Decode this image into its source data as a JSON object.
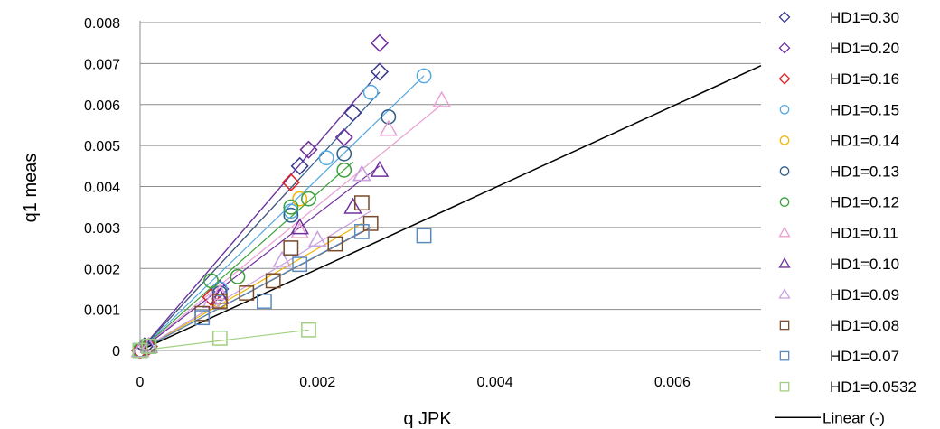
{
  "chart_data": {
    "type": "scatter",
    "title": "",
    "xlabel": "q JPK",
    "ylabel": "q1 meas",
    "xlim": [
      0,
      0.007
    ],
    "ylim": [
      0,
      0.008
    ],
    "xticks": [
      0,
      0.002,
      0.004,
      0.006
    ],
    "xtick_labels": [
      "0",
      "0.002",
      "0.004",
      "0.006"
    ],
    "yticks": [
      0,
      0.001,
      0.002,
      0.003,
      0.004,
      0.005,
      0.006,
      0.007,
      0.008
    ],
    "ytick_labels": [
      "0",
      "0.001",
      "0.002",
      "0.003",
      "0.004",
      "0.005",
      "0.006",
      "0.007",
      "0.008"
    ],
    "grid": "horizontal",
    "legend_position": "right",
    "series": [
      {
        "name": "HD1=0.30",
        "marker": "diamond",
        "color": "#3a3a8c",
        "points": [
          [
            0,
            0
          ],
          [
            5e-05,
            0.0001
          ],
          [
            0.0009,
            0.0015
          ],
          [
            0.0018,
            0.0045
          ],
          [
            0.0024,
            0.0058
          ],
          [
            0.0027,
            0.0068
          ]
        ],
        "fit": [
          [
            0,
            0
          ],
          [
            0.0027,
            0.0068
          ]
        ]
      },
      {
        "name": "HD1=0.20",
        "marker": "diamond",
        "color": "#7030a0",
        "points": [
          [
            0,
            0
          ],
          [
            0.0001,
            0.0001
          ],
          [
            0.0009,
            0.0015
          ],
          [
            0.0019,
            0.0049
          ],
          [
            0.0023,
            0.0052
          ],
          [
            0.0027,
            0.0075
          ]
        ],
        "fit": [
          [
            0,
            0
          ],
          [
            0.0025,
            0.0063
          ]
        ]
      },
      {
        "name": "HD1=0.16",
        "marker": "diamond",
        "color": "#e02020",
        "points": [
          [
            0,
            0
          ],
          [
            0.0001,
            0.0001
          ],
          [
            0.0008,
            0.0013
          ],
          [
            0.0017,
            0.0041
          ]
        ],
        "fit": [
          [
            0,
            0
          ],
          [
            0.0018,
            0.0042
          ]
        ]
      },
      {
        "name": "HD1=0.15",
        "marker": "circle",
        "color": "#55a8e0",
        "points": [
          [
            0,
            0
          ],
          [
            0.0001,
            0.0001
          ],
          [
            0.0009,
            0.0015
          ],
          [
            0.0017,
            0.0034
          ],
          [
            0.0021,
            0.0047
          ],
          [
            0.0026,
            0.0063
          ],
          [
            0.0032,
            0.0067
          ]
        ],
        "fit": [
          [
            0,
            0
          ],
          [
            0.0032,
            0.0067
          ]
        ]
      },
      {
        "name": "HD1=0.14",
        "marker": "circle",
        "color": "#f0b400",
        "points": [
          [
            0,
            0
          ],
          [
            0.0001,
            0.0001
          ],
          [
            0.0009,
            0.0012
          ],
          [
            0.0018,
            0.0037
          ]
        ],
        "fit": [
          [
            0,
            0
          ],
          [
            0.0025,
            0.0031
          ]
        ]
      },
      {
        "name": "HD1=0.13",
        "marker": "circle",
        "color": "#2e5e8c",
        "points": [
          [
            0,
            0
          ],
          [
            0.0001,
            0.0001
          ],
          [
            0.0009,
            0.0014
          ],
          [
            0.0017,
            0.0033
          ],
          [
            0.0023,
            0.0048
          ],
          [
            0.0028,
            0.0057
          ]
        ],
        "fit": [
          [
            0,
            0
          ],
          [
            0.0027,
            0.0063
          ]
        ]
      },
      {
        "name": "HD1=0.12",
        "marker": "circle",
        "color": "#3aa03a",
        "points": [
          [
            0,
            0
          ],
          [
            0.0001,
            0.0001
          ],
          [
            0.0008,
            0.0017
          ],
          [
            0.0011,
            0.0018
          ],
          [
            0.0017,
            0.0035
          ],
          [
            0.0019,
            0.0037
          ],
          [
            0.0023,
            0.0044
          ]
        ],
        "fit": [
          [
            0,
            0
          ],
          [
            0.0024,
            0.0046
          ]
        ]
      },
      {
        "name": "HD1=0.11",
        "marker": "triangle",
        "color": "#e8a0d0",
        "points": [
          [
            0,
            0
          ],
          [
            0.0001,
            0.0001
          ],
          [
            0.0009,
            0.0014
          ],
          [
            0.0018,
            0.0029
          ],
          [
            0.0025,
            0.0043
          ],
          [
            0.0028,
            0.0054
          ],
          [
            0.0034,
            0.0061
          ]
        ],
        "fit": [
          [
            0,
            0
          ],
          [
            0.0034,
            0.006
          ]
        ]
      },
      {
        "name": "HD1=0.10",
        "marker": "triangle",
        "color": "#7030a0",
        "points": [
          [
            0,
            0
          ],
          [
            0.0001,
            0.0001
          ],
          [
            0.0009,
            0.0013
          ],
          [
            0.0018,
            0.003
          ],
          [
            0.0024,
            0.0035
          ],
          [
            0.0027,
            0.0044
          ]
        ],
        "fit": [
          [
            0,
            0
          ],
          [
            0.0027,
            0.0045
          ]
        ]
      },
      {
        "name": "HD1=0.09",
        "marker": "triangle",
        "color": "#c9a0e0",
        "points": [
          [
            0,
            0
          ],
          [
            0.0001,
            0.0001
          ],
          [
            0.0008,
            0.0012
          ],
          [
            0.0016,
            0.0022
          ],
          [
            0.002,
            0.0027
          ],
          [
            0.0025,
            0.0043
          ]
        ],
        "fit": [
          [
            0,
            0
          ],
          [
            0.0026,
            0.0034
          ]
        ]
      },
      {
        "name": "HD1=0.08",
        "marker": "square",
        "color": "#7a4a2a",
        "points": [
          [
            0,
            0
          ],
          [
            0.0001,
            0.0001
          ],
          [
            0.0007,
            0.0009
          ],
          [
            0.0009,
            0.0012
          ],
          [
            0.0012,
            0.0014
          ],
          [
            0.0015,
            0.0017
          ],
          [
            0.0017,
            0.0025
          ],
          [
            0.0022,
            0.0026
          ],
          [
            0.0025,
            0.0036
          ],
          [
            0.0026,
            0.0031
          ]
        ],
        "fit": [
          [
            0,
            0
          ],
          [
            0.0026,
            0.003
          ]
        ]
      },
      {
        "name": "HD1=0.07",
        "marker": "square",
        "color": "#5a8ac0",
        "points": [
          [
            0,
            0
          ],
          [
            0.0001,
            0.0001
          ],
          [
            0.0007,
            0.0008
          ],
          [
            0.0014,
            0.0012
          ],
          [
            0.0018,
            0.0021
          ],
          [
            0.0025,
            0.0029
          ],
          [
            0.0032,
            0.0028
          ]
        ],
        "fit": [
          [
            0,
            0
          ],
          [
            0.0025,
            0.0029
          ]
        ]
      },
      {
        "name": "HD1=0.0532",
        "marker": "square",
        "color": "#a0d080",
        "points": [
          [
            0,
            0
          ],
          [
            0.0001,
            0.0001
          ],
          [
            0.0009,
            0.0003
          ],
          [
            0.0019,
            0.0005
          ]
        ],
        "fit": [
          [
            0,
            0
          ],
          [
            0.0019,
            0.0005
          ]
        ]
      },
      {
        "name": "Linear (-)",
        "marker": "line",
        "color": "#000000",
        "points": [],
        "fit": [
          [
            0,
            0
          ],
          [
            0.007,
            0.00695
          ]
        ]
      }
    ]
  }
}
